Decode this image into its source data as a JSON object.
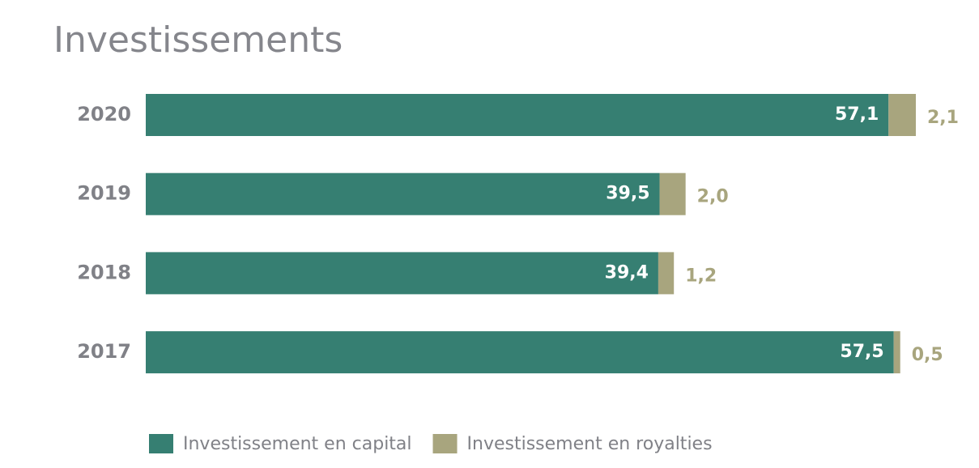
{
  "chart_data": {
    "type": "stacked-bar-horizontal",
    "title": "Investissements",
    "categories": [
      "2020",
      "2019",
      "2018",
      "2017"
    ],
    "series": [
      {
        "name": "Investissement en capital",
        "color": "#367f72",
        "values": [
          57.1,
          39.5,
          39.4,
          57.5
        ],
        "value_labels": [
          "57,1",
          "39,5",
          "39,4",
          "57,5"
        ]
      },
      {
        "name": "Investissement en royalties",
        "color": "#a8a57e",
        "values": [
          2.1,
          2.0,
          1.2,
          0.5
        ],
        "value_labels": [
          "2,1",
          "2,0",
          "1,2",
          "0,5"
        ]
      }
    ]
  }
}
